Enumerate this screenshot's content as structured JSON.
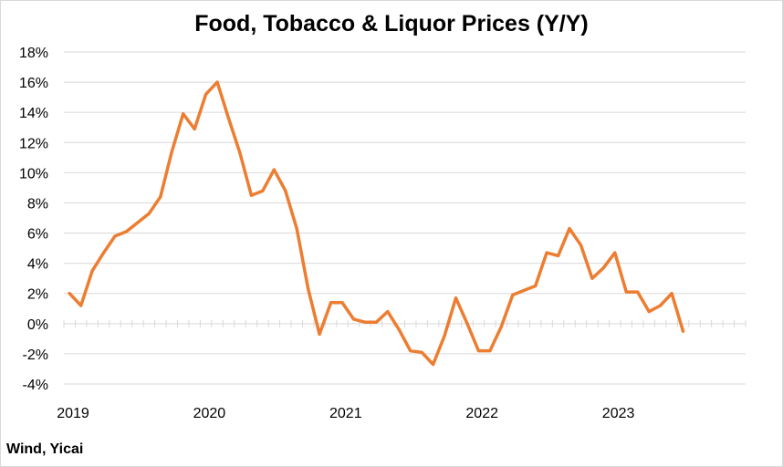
{
  "chart_data": {
    "type": "line",
    "title": "Food, Tobacco & Liquor Prices (Y/Y)",
    "source": "Wind, Yicai",
    "xlabel": "",
    "ylabel": "",
    "ylim": [
      -4,
      18
    ],
    "y_ticks": [
      -4,
      -2,
      0,
      2,
      4,
      6,
      8,
      10,
      12,
      14,
      16,
      18
    ],
    "y_tick_labels": [
      "-4%",
      "-2%",
      "0%",
      "2%",
      "4%",
      "6%",
      "8%",
      "10%",
      "12%",
      "14%",
      "16%",
      "18%"
    ],
    "x_tick_labels": [
      "2019",
      "2020",
      "2021",
      "2022",
      "2023"
    ],
    "grid": true,
    "series": [
      {
        "color": "#ED7D31",
        "x": [
          "2019-01",
          "2019-02",
          "2019-03",
          "2019-04",
          "2019-05",
          "2019-06",
          "2019-07",
          "2019-08",
          "2019-09",
          "2019-10",
          "2019-11",
          "2019-12",
          "2020-01",
          "2020-02",
          "2020-03",
          "2020-04",
          "2020-05",
          "2020-06",
          "2020-07",
          "2020-08",
          "2020-09",
          "2020-10",
          "2020-11",
          "2020-12",
          "2021-01",
          "2021-02",
          "2021-03",
          "2021-04",
          "2021-05",
          "2021-06",
          "2021-07",
          "2021-08",
          "2021-09",
          "2021-10",
          "2021-11",
          "2021-12",
          "2022-01",
          "2022-02",
          "2022-03",
          "2022-04",
          "2022-05",
          "2022-06",
          "2022-07",
          "2022-08",
          "2022-09",
          "2022-10",
          "2022-11",
          "2022-12",
          "2023-01",
          "2023-02",
          "2023-03",
          "2023-04",
          "2023-05",
          "2023-06",
          "2023-07"
        ],
        "values": [
          2.0,
          1.2,
          3.5,
          4.7,
          5.8,
          6.1,
          6.7,
          7.3,
          8.4,
          11.4,
          13.9,
          12.9,
          15.2,
          16.0,
          13.6,
          11.3,
          8.5,
          8.8,
          10.2,
          8.8,
          6.3,
          2.3,
          -0.7,
          1.4,
          1.4,
          0.3,
          0.1,
          0.1,
          0.8,
          -0.4,
          -1.8,
          -1.9,
          -2.7,
          -0.8,
          1.7,
          0.0,
          -1.8,
          -1.8,
          -0.2,
          1.9,
          2.2,
          2.5,
          4.7,
          4.5,
          6.3,
          5.2,
          3.0,
          3.7,
          4.7,
          2.1,
          2.1,
          0.8,
          1.2,
          2.0,
          -0.5
        ]
      }
    ]
  }
}
